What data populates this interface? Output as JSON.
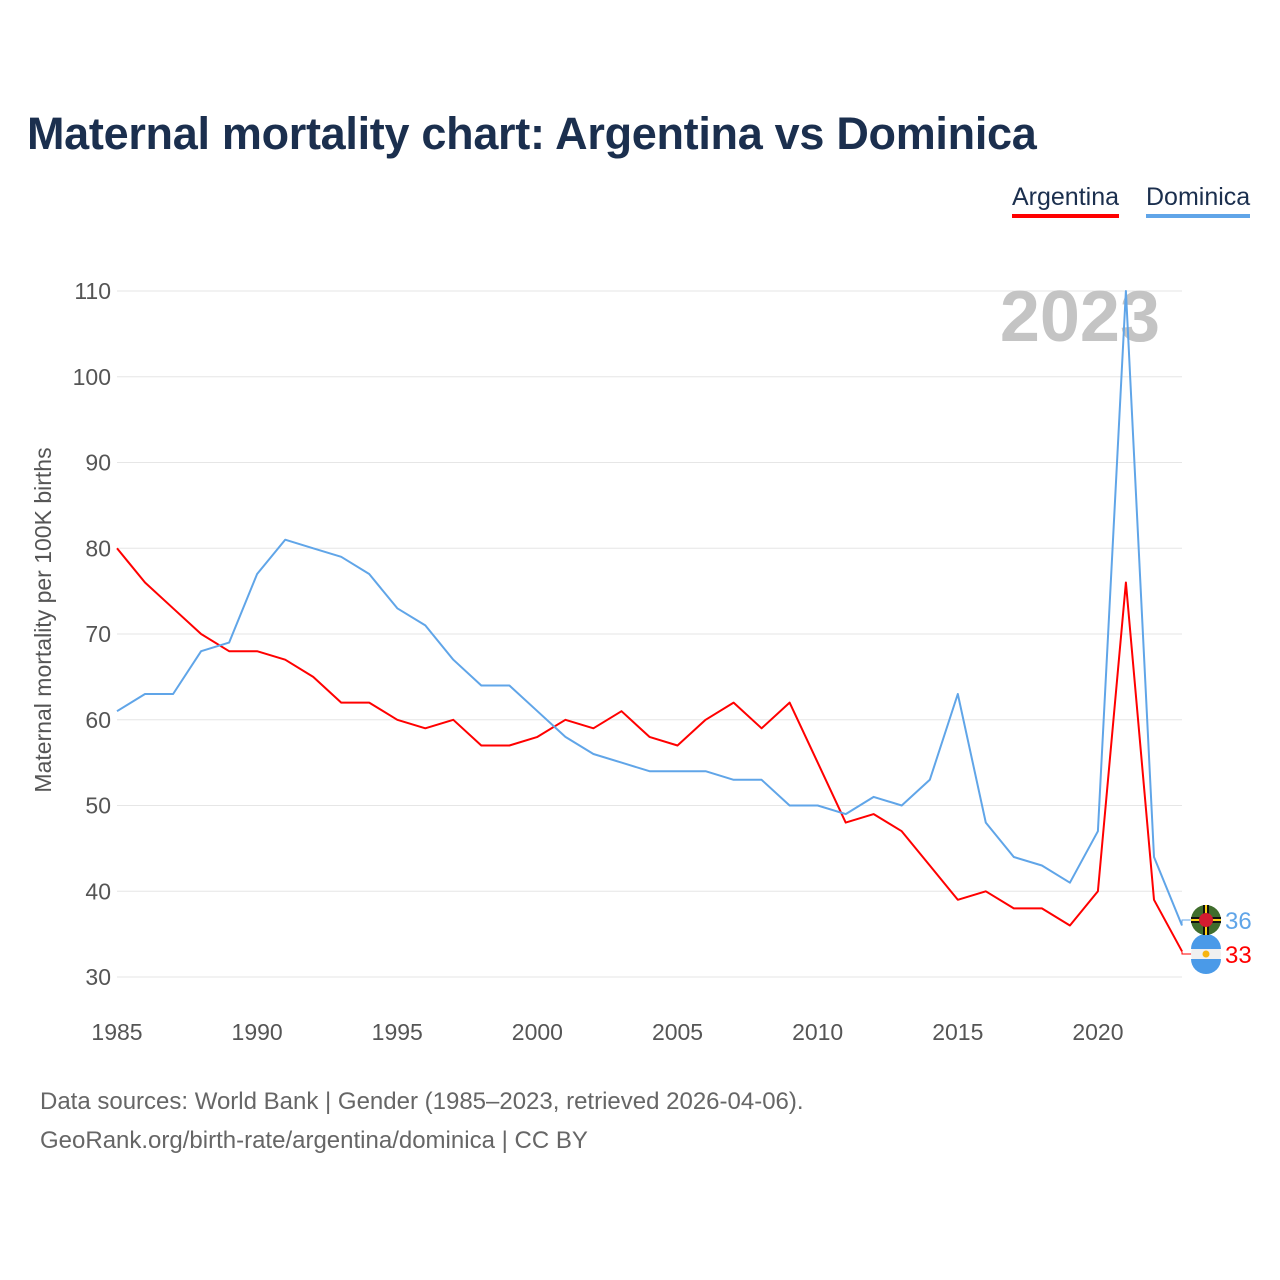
{
  "chart_data": {
    "type": "line",
    "title": "Maternal mortality chart: Argentina vs Dominica",
    "ylabel": "Maternal mortality per 100K births",
    "xlabel": "",
    "year_watermark": "2023",
    "xlim": [
      1985,
      2023
    ],
    "ylim": [
      30,
      110
    ],
    "x_ticks": [
      1985,
      1990,
      1995,
      2000,
      2005,
      2010,
      2015,
      2020
    ],
    "y_ticks": [
      30,
      40,
      50,
      60,
      70,
      80,
      90,
      100,
      110
    ],
    "grid": true,
    "legend_position": "top-right",
    "x": [
      1985,
      1986,
      1987,
      1988,
      1989,
      1990,
      1991,
      1992,
      1993,
      1994,
      1995,
      1996,
      1997,
      1998,
      1999,
      2000,
      2001,
      2002,
      2003,
      2004,
      2005,
      2006,
      2007,
      2008,
      2009,
      2010,
      2011,
      2012,
      2013,
      2014,
      2015,
      2016,
      2017,
      2018,
      2019,
      2020,
      2021,
      2022,
      2023
    ],
    "series": [
      {
        "name": "Argentina",
        "color": "#ff0000",
        "end_label": "33",
        "values": [
          80,
          76,
          73,
          70,
          68,
          68,
          67,
          65,
          62,
          62,
          60,
          59,
          60,
          57,
          57,
          58,
          60,
          59,
          61,
          58,
          57,
          60,
          62,
          59,
          62,
          55,
          48,
          49,
          47,
          43,
          39,
          40,
          38,
          38,
          36,
          40,
          76,
          39,
          33
        ]
      },
      {
        "name": "Dominica",
        "color": "#60a5e8",
        "end_label": "36",
        "values": [
          61,
          63,
          63,
          68,
          69,
          77,
          81,
          80,
          79,
          77,
          73,
          71,
          67,
          64,
          64,
          61,
          58,
          56,
          55,
          54,
          54,
          54,
          53,
          53,
          50,
          50,
          49,
          51,
          50,
          53,
          63,
          48,
          44,
          43,
          41,
          47,
          110,
          44,
          36
        ]
      }
    ]
  },
  "footer": {
    "line1": "Data sources: World Bank | Gender (1985–2023, retrieved 2026-04-06).",
    "line2": "GeoRank.org/birth-rate/argentina/dominica | CC BY"
  }
}
